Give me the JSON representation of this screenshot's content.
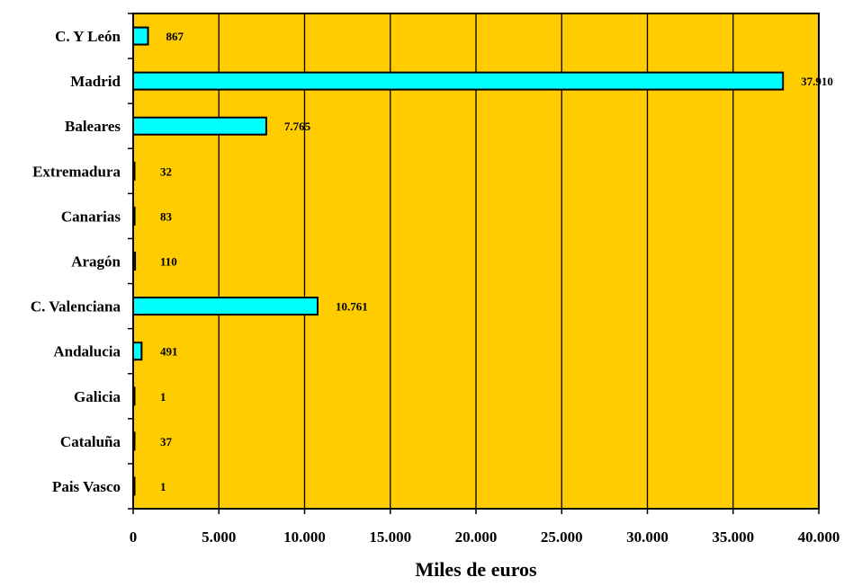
{
  "chart_data": {
    "type": "bar",
    "orientation": "horizontal",
    "title": "",
    "xlabel": "Miles de euros",
    "ylabel": "",
    "categories": [
      "C. Y León",
      "Madrid",
      "Baleares",
      "Extremadura",
      "Canarias",
      "Aragón",
      "C. Valenciana",
      "Andalucia",
      "Galicia",
      "Cataluña",
      "Pais Vasco"
    ],
    "values": [
      867,
      37910,
      7765,
      32,
      83,
      110,
      10761,
      491,
      1,
      37,
      1
    ],
    "value_labels": [
      "867",
      "37.910",
      "7.765",
      "32",
      "83",
      "110",
      "10.761",
      "491",
      "1",
      "37",
      "1"
    ],
    "xlim": [
      0,
      40000
    ],
    "xticks": [
      0,
      5000,
      10000,
      15000,
      20000,
      25000,
      30000,
      35000,
      40000
    ],
    "xtick_labels": [
      "0",
      "5.000",
      "10.000",
      "15.000",
      "20.000",
      "25.000",
      "30.000",
      "35.000",
      "40.000"
    ],
    "grid": "vertical",
    "legend": "none",
    "colors": {
      "plot_background": "#FFCC00",
      "bar_fill": "#00FFFF",
      "bar_stroke": "#000000",
      "gridline": "#000000"
    }
  }
}
